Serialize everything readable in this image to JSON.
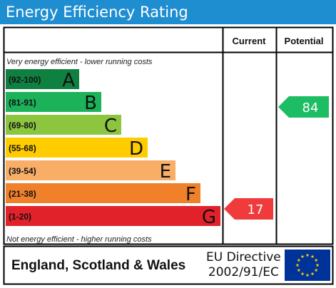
{
  "header": {
    "title": "Energy Efficiency Rating"
  },
  "columns": {
    "current": "Current",
    "potential": "Potential"
  },
  "scale": {
    "top_note": "Very energy efficient - lower running costs",
    "bottom_note": "Not energy efficient - higher running costs"
  },
  "chart_data": {
    "type": "bar",
    "title": "Energy Efficiency Rating",
    "categories": [
      "A",
      "B",
      "C",
      "D",
      "E",
      "F",
      "G"
    ],
    "bands": [
      {
        "letter": "A",
        "range": "(92-100)",
        "color": "#0e8040"
      },
      {
        "letter": "B",
        "range": "(81-91)",
        "color": "#1cb25a"
      },
      {
        "letter": "C",
        "range": "(69-80)",
        "color": "#8cc63f"
      },
      {
        "letter": "D",
        "range": "(55-68)",
        "color": "#ffcc00"
      },
      {
        "letter": "E",
        "range": "(39-54)",
        "color": "#f9ae67"
      },
      {
        "letter": "F",
        "range": "(21-38)",
        "color": "#f1802a"
      },
      {
        "letter": "G",
        "range": "(1-20)",
        "color": "#e1222a"
      }
    ],
    "current": {
      "value": 17,
      "band": "G",
      "color": "#ef3b3b"
    },
    "potential": {
      "value": 84,
      "band": "B",
      "color": "#1cbd63"
    }
  },
  "footer": {
    "region": "England, Scotland & Wales",
    "directive_line1": "EU Directive",
    "directive_line2": "2002/91/EC",
    "flag_colors": {
      "field": "#003399",
      "stars": "#ffcc00"
    }
  },
  "colors": {
    "header_bg": "#1f8ed0",
    "border": "#000000"
  }
}
